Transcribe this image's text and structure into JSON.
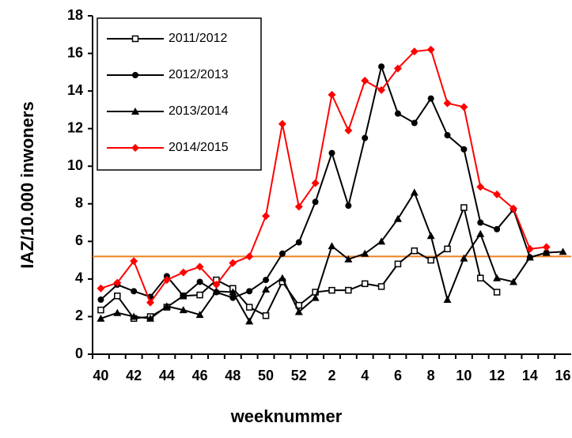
{
  "chart_data": {
    "type": "line",
    "x_label": "weeknummer",
    "y_label": "IAZ/10.000 inwoners",
    "categories": [
      "40",
      null,
      "42",
      null,
      "44",
      null,
      "46",
      null,
      "48",
      null,
      "50",
      null,
      "52",
      null,
      "2",
      null,
      "4",
      null,
      "6",
      null,
      "8",
      null,
      "10",
      null,
      "12",
      null,
      "14",
      null,
      "16"
    ],
    "ylim": [
      0,
      18
    ],
    "yticks": [
      0,
      2,
      4,
      6,
      8,
      10,
      12,
      14,
      16,
      18
    ],
    "reference_line": {
      "value": 5.2,
      "color": "#f07f1c"
    },
    "legend": "top-left",
    "series": [
      {
        "name": "2011/2012",
        "color": "#000000",
        "marker": "square",
        "values": [
          2.35,
          3.1,
          1.9,
          2.0,
          2.5,
          3.1,
          3.15,
          3.95,
          3.5,
          2.5,
          2.05,
          3.85,
          2.6,
          3.3,
          3.4,
          3.4,
          3.75,
          3.6,
          4.8,
          5.5,
          5.0,
          5.6,
          7.8,
          4.05,
          3.3,
          null,
          null,
          null,
          null
        ]
      },
      {
        "name": "2012/2013",
        "color": "#000000",
        "marker": "circle",
        "values": [
          2.9,
          3.7,
          3.35,
          3.05,
          4.15,
          3.1,
          3.85,
          3.3,
          3.0,
          3.35,
          3.95,
          5.35,
          5.95,
          8.1,
          10.7,
          7.9,
          11.5,
          15.3,
          12.8,
          12.3,
          13.6,
          11.65,
          10.9,
          7.0,
          6.65,
          7.7,
          5.15,
          5.4,
          null
        ]
      },
      {
        "name": "2013/2014",
        "color": "#000000",
        "marker": "triangle",
        "values": [
          1.9,
          2.2,
          2.0,
          1.9,
          2.55,
          2.35,
          2.1,
          3.35,
          3.3,
          1.75,
          3.45,
          4.05,
          2.25,
          3.0,
          5.75,
          5.05,
          5.35,
          6.0,
          7.2,
          8.6,
          6.3,
          2.9,
          5.1,
          6.4,
          4.05,
          3.85,
          5.15,
          5.4,
          5.45
        ]
      },
      {
        "name": "2014/2015",
        "color": "#ff0000",
        "marker": "diamond",
        "values": [
          3.5,
          3.8,
          4.95,
          2.75,
          3.95,
          4.35,
          4.65,
          3.7,
          4.85,
          5.2,
          7.35,
          12.25,
          7.85,
          9.1,
          13.8,
          11.9,
          14.55,
          14.05,
          15.2,
          16.1,
          16.2,
          13.35,
          13.15,
          8.9,
          8.5,
          7.75,
          5.6,
          5.7,
          null
        ]
      }
    ]
  }
}
